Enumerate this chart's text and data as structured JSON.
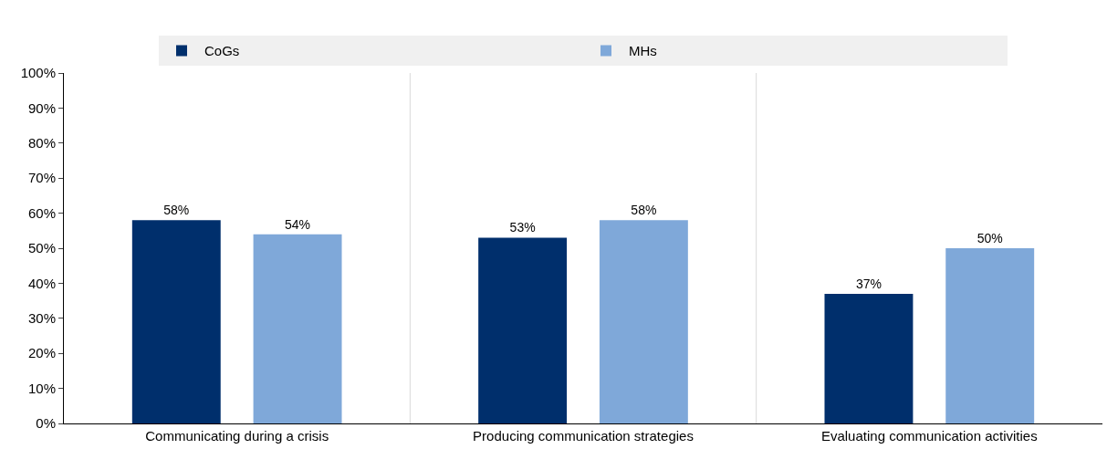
{
  "chart_data": {
    "type": "bar",
    "categories": [
      "Communicating during a crisis",
      "Producing communication strategies",
      "Evaluating communication activities"
    ],
    "series": [
      {
        "name": "CoGs",
        "color": "#002f6c",
        "values": [
          58,
          53,
          37
        ],
        "value_labels": [
          "58%",
          "53%",
          "37%"
        ]
      },
      {
        "name": "MHs",
        "color": "#7fa8d9",
        "values": [
          54,
          58,
          50
        ],
        "value_labels": [
          "54%",
          "58%",
          "50%"
        ]
      }
    ],
    "ylim": [
      0,
      100
    ],
    "yticks": [
      {
        "value": 0,
        "label": "0%"
      },
      {
        "value": 10,
        "label": "10%"
      },
      {
        "value": 20,
        "label": "20%"
      },
      {
        "value": 30,
        "label": "30%"
      },
      {
        "value": 40,
        "label": "40%"
      },
      {
        "value": 50,
        "label": "50%"
      },
      {
        "value": 60,
        "label": "60%"
      },
      {
        "value": 70,
        "label": "70%"
      },
      {
        "value": 80,
        "label": "80%"
      },
      {
        "value": 90,
        "label": "90%"
      },
      {
        "value": 100,
        "label": "100%"
      }
    ],
    "grid": "x",
    "legend": "top"
  }
}
